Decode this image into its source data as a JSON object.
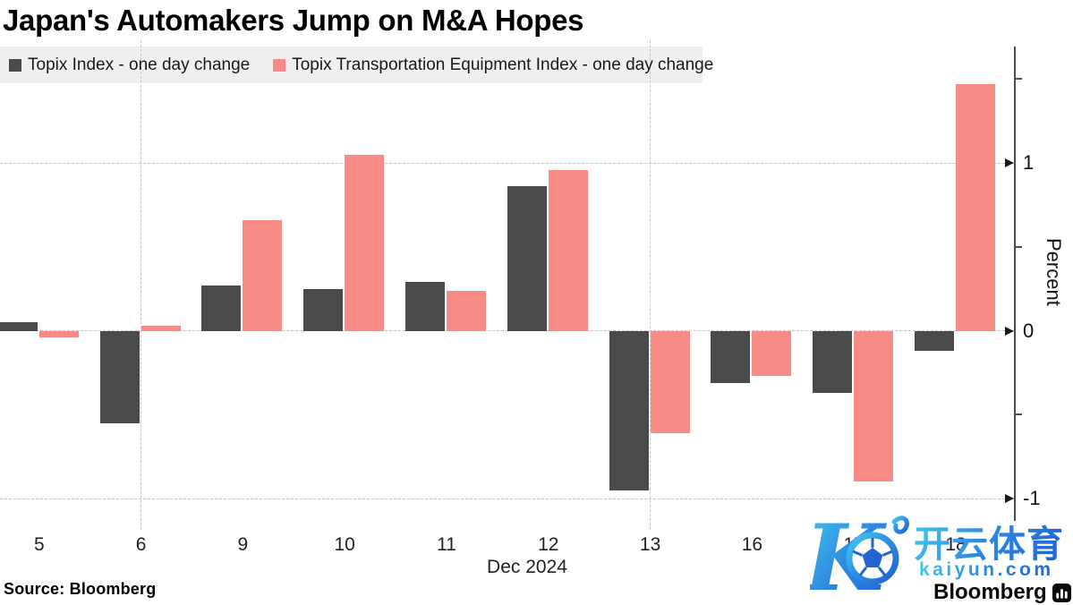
{
  "chart_data": {
    "type": "bar",
    "title": "Japan's Automakers Jump on M&A Hopes",
    "categories": [
      "5",
      "6",
      "9",
      "10",
      "11",
      "12",
      "13",
      "16",
      "17",
      "18"
    ],
    "x_period_label": "Dec 2024",
    "ylabel": "Percent",
    "unit": "percent (one day change)",
    "series": [
      {
        "name": "Topix Index - one day change",
        "color": "#4a4a4a",
        "values": [
          0.05,
          -0.55,
          0.27,
          0.25,
          0.29,
          0.86,
          -0.95,
          -0.31,
          -0.37,
          -0.12
        ]
      },
      {
        "name": "Topix Transportation Equipment Index - one day change",
        "color": "#f98b86",
        "values": [
          -0.04,
          0.03,
          0.66,
          1.05,
          0.24,
          0.96,
          -0.61,
          -0.27,
          -0.9,
          1.47
        ]
      }
    ],
    "yticks": [
      {
        "value": 1,
        "label": "1"
      },
      {
        "value": 0,
        "label": "0"
      },
      {
        "value": -1,
        "label": "-1"
      }
    ],
    "y_minor_ticks": [
      1.5,
      0.5,
      -0.5
    ],
    "ylim": [
      -1.2,
      1.73
    ],
    "grid": {
      "horizontal": "dashed",
      "vertical_separators_at": [
        "6",
        "13"
      ]
    },
    "legend_position": "top-left",
    "axis_side": "right"
  },
  "legend": {
    "background": "#efefef"
  },
  "footer": {
    "source": "Source:  Bloomberg"
  },
  "watermark": {
    "logo_letter": "K",
    "brand_cjk": "开云体育",
    "domain": "kaiyun.com",
    "brand": "Bloomberg",
    "accent_light": "#41c9ef",
    "accent_dark": "#1f5fd6"
  }
}
